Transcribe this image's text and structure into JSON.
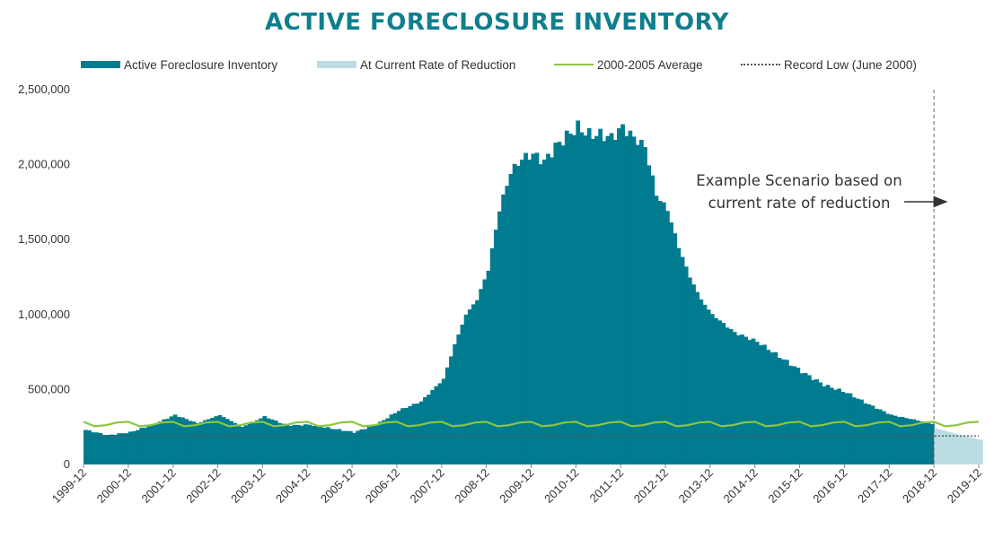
{
  "chart_data": {
    "type": "area",
    "title": "ACTIVE FORECLOSURE INVENTORY",
    "xlabel": "",
    "ylabel": "",
    "ylim": [
      0,
      2500000
    ],
    "y_ticks": [
      0,
      500000,
      1000000,
      1500000,
      2000000,
      2500000
    ],
    "y_tick_labels": [
      "0",
      "500,000",
      "1,000,000",
      "1,500,000",
      "2,000,000",
      "2,500,000"
    ],
    "x_ticks": [
      "1999-12",
      "2000-12",
      "2001-12",
      "2002-12",
      "2003-12",
      "2004-12",
      "2005-12",
      "2006-12",
      "2007-12",
      "2008-12",
      "2009-12",
      "2010-12",
      "2011-12",
      "2012-12",
      "2013-12",
      "2014-12",
      "2015-12",
      "2016-12",
      "2017-12",
      "2018-12",
      "2019-12"
    ],
    "grid": false,
    "legend_position": "top",
    "colors": {
      "inventory": "#007b8f",
      "projection": "#b9dde3",
      "average": "#8cc63f",
      "record_low": "#555555",
      "title": "#0f7f8e"
    },
    "series": [
      {
        "name": "Active Foreclosure Inventory",
        "kind": "bars",
        "x": [
          "1999-12",
          "2000-06",
          "2000-12",
          "2001-06",
          "2001-12",
          "2002-06",
          "2002-12",
          "2003-06",
          "2003-12",
          "2004-06",
          "2004-12",
          "2005-06",
          "2005-12",
          "2006-06",
          "2006-12",
          "2007-06",
          "2007-12",
          "2008-03",
          "2008-06",
          "2008-09",
          "2008-12",
          "2009-03",
          "2009-06",
          "2009-09",
          "2009-12",
          "2010-03",
          "2010-06",
          "2010-09",
          "2010-12",
          "2011-03",
          "2011-06",
          "2011-09",
          "2011-12",
          "2012-03",
          "2012-06",
          "2012-09",
          "2012-12",
          "2013-03",
          "2013-06",
          "2013-09",
          "2013-12",
          "2014-06",
          "2014-12",
          "2015-06",
          "2015-12",
          "2016-06",
          "2016-12",
          "2017-06",
          "2017-12",
          "2018-06",
          "2018-11"
        ],
        "values": [
          230000,
          195000,
          215000,
          265000,
          330000,
          275000,
          330000,
          250000,
          320000,
          260000,
          265000,
          240000,
          215000,
          265000,
          360000,
          420000,
          570000,
          800000,
          1000000,
          1100000,
          1300000,
          1700000,
          1950000,
          2040000,
          2070000,
          2020000,
          2120000,
          2190000,
          2250000,
          2200000,
          2200000,
          2180000,
          2250000,
          2180000,
          2120000,
          1800000,
          1700000,
          1450000,
          1250000,
          1100000,
          1000000,
          880000,
          820000,
          720000,
          620000,
          530000,
          480000,
          400000,
          330000,
          300000,
          270000
        ]
      },
      {
        "name": "At Current Rate of Reduction",
        "kind": "bars",
        "x": [
          "2018-12",
          "2019-06",
          "2019-12"
        ],
        "values": [
          240000,
          200000,
          165000
        ]
      },
      {
        "name": "2000-2005 Average",
        "kind": "line",
        "x": [
          "1999-12",
          "2000-03",
          "2000-06",
          "2000-09",
          "2000-12"
        ],
        "values": [
          285000,
          255000,
          262000,
          280000,
          285000
        ],
        "note": "seasonal pattern repeated every year through 2019-12"
      },
      {
        "name": "Record Low (June 2000)",
        "kind": "dotted-line",
        "value": 190000
      }
    ],
    "annotation": {
      "lines": [
        "Example Scenario based on",
        "current rate of reduction"
      ],
      "divider_at": "2018-12"
    }
  }
}
